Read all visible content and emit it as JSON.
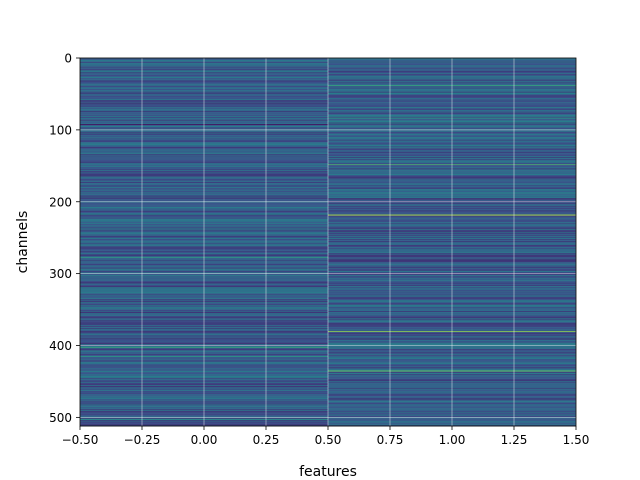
{
  "chart_data": {
    "type": "heatmap",
    "title": "",
    "xlabel": "features",
    "ylabel": "channels",
    "xlim": [
      -0.5,
      1.5
    ],
    "ylim": [
      512,
      0
    ],
    "grid": true,
    "colormap": "viridis",
    "columns": [
      0,
      1
    ],
    "rows": 512,
    "x_ticks": [
      "−0.50",
      "−0.25",
      "0.00",
      "0.25",
      "0.50",
      "0.75",
      "1.00",
      "1.25",
      "1.50"
    ],
    "x_tick_values": [
      -0.5,
      -0.25,
      0.0,
      0.25,
      0.5,
      0.75,
      1.0,
      1.25,
      1.5
    ],
    "y_ticks": [
      "0",
      "100",
      "200",
      "300",
      "400",
      "500"
    ],
    "y_tick_values": [
      0,
      100,
      200,
      300,
      400,
      500
    ],
    "highlights": [
      {
        "column": 0,
        "channel": 92,
        "value": 0.02
      },
      {
        "column": 0,
        "channel": 277,
        "value": 0.55
      },
      {
        "column": 0,
        "channel": 402,
        "value": 0.6
      },
      {
        "column": 0,
        "channel": 415,
        "value": 0.55
      },
      {
        "column": 0,
        "channel": 502,
        "value": 0.5
      },
      {
        "column": 1,
        "channel": 38,
        "value": 0.6
      },
      {
        "column": 1,
        "channel": 83,
        "value": 0.55
      },
      {
        "column": 1,
        "channel": 148,
        "value": 0.7
      },
      {
        "column": 1,
        "channel": 218,
        "value": 0.95
      },
      {
        "column": 1,
        "channel": 380,
        "value": 0.85
      },
      {
        "column": 1,
        "channel": 435,
        "value": 0.8
      }
    ],
    "colors": {
      "base": "#3b528b",
      "low": "#440154",
      "mid": "#21918c",
      "high": "#fde725",
      "grid": "#ffffff"
    }
  }
}
